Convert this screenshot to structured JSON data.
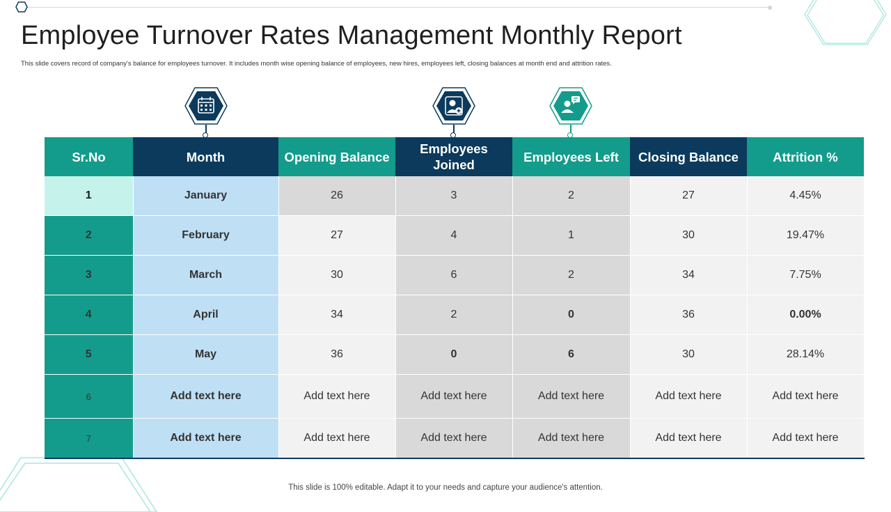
{
  "title": "Employee Turnover Rates Management Monthly Report",
  "subtitle": "This slide covers record of company's balance for employees turnover. It includes month  wise opening balance of employees, new hires, employees left, closing balances at month  end and attrition rates.",
  "icons": [
    "calendar-icon",
    "add-user-icon",
    "user-message-icon"
  ],
  "colors": {
    "teal": "#139c8b",
    "navy": "#0b3a5c",
    "light_teal": "#c5f3ec",
    "light_blue": "#bfdff5"
  },
  "table": {
    "headers": {
      "sr": "Sr.No",
      "month": "Month",
      "opening": "Opening Balance",
      "joined": "Employees Joined",
      "left": "Employees Left",
      "closing": "Closing Balance",
      "attrition": "Attrition %"
    },
    "rows": [
      {
        "sr": "1",
        "month": "January",
        "opening": "26",
        "joined": "3",
        "left": "2",
        "closing": "27",
        "attrition": "4.45%"
      },
      {
        "sr": "2",
        "month": "February",
        "opening": "27",
        "joined": "4",
        "left": "1",
        "closing": "30",
        "attrition": "19.47%"
      },
      {
        "sr": "3",
        "month": "March",
        "opening": "30",
        "joined": "6",
        "left": "2",
        "closing": "34",
        "attrition": "7.75%"
      },
      {
        "sr": "4",
        "month": "April",
        "opening": "34",
        "joined": "2",
        "left": "0",
        "closing": "36",
        "attrition": "0.00%"
      },
      {
        "sr": "5",
        "month": "May",
        "opening": "36",
        "joined": "0",
        "left": "6",
        "closing": "30",
        "attrition": "28.14%"
      },
      {
        "sr": "6",
        "month": "Add text here",
        "opening": "Add text here",
        "joined": "Add text here",
        "left": "Add text here",
        "closing": "Add text here",
        "attrition": "Add text here"
      },
      {
        "sr": "7",
        "month": "Add text here",
        "opening": "Add text here",
        "joined": "Add text here",
        "left": "Add text here",
        "closing": "Add text here",
        "attrition": "Add text here"
      }
    ]
  },
  "footer": "This slide is 100% editable. Adapt it to your needs and capture your audience's attention."
}
